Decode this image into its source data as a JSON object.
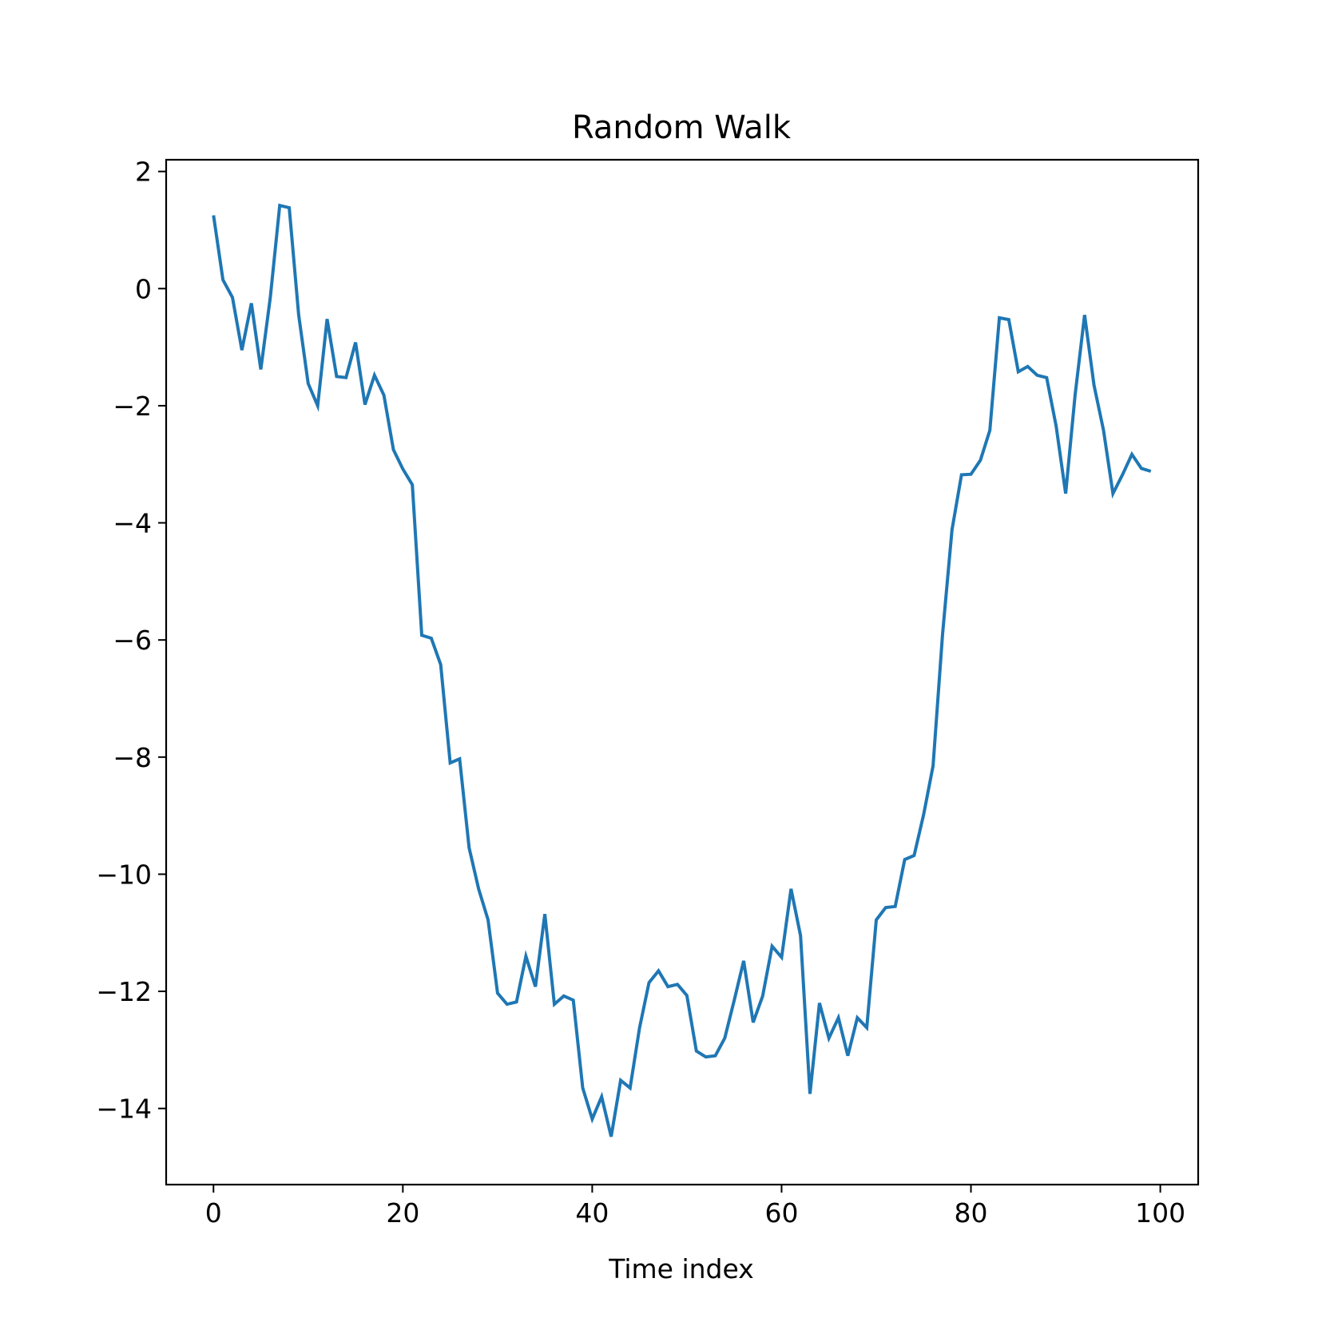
{
  "chart_data": {
    "type": "line",
    "title": "Random Walk",
    "xlabel": "Time index",
    "ylabel": "",
    "xlim": [
      -5,
      104
    ],
    "ylim": [
      -15.3,
      2.2
    ],
    "xticks": [
      0,
      20,
      40,
      60,
      80,
      100
    ],
    "yticks": [
      2,
      0,
      -2,
      -4,
      -6,
      -8,
      -10,
      -12,
      -14
    ],
    "xtick_labels": [
      "0",
      "20",
      "40",
      "60",
      "80",
      "100"
    ],
    "ytick_labels": [
      "2",
      "0",
      "−2",
      "−4",
      "−6",
      "−8",
      "−10",
      "−12",
      "−14"
    ],
    "grid": false,
    "series": [
      {
        "color": "#1f77b4",
        "x": [
          0,
          1,
          2,
          3,
          4,
          5,
          6,
          7,
          8,
          9,
          10,
          11,
          12,
          13,
          14,
          15,
          16,
          17,
          18,
          19,
          20,
          21,
          22,
          23,
          24,
          25,
          26,
          27,
          28,
          29,
          30,
          31,
          32,
          33,
          34,
          35,
          36,
          37,
          38,
          39,
          40,
          41,
          42,
          43,
          44,
          45,
          46,
          47,
          48,
          49,
          50,
          51,
          52,
          53,
          54,
          55,
          56,
          57,
          58,
          59,
          60,
          61,
          62,
          63,
          64,
          65,
          66,
          67,
          68,
          69,
          70,
          71,
          72,
          73,
          74,
          75,
          76,
          77,
          78,
          79,
          80,
          81,
          82,
          83,
          84,
          85,
          86,
          87,
          88,
          89,
          90,
          91,
          92,
          93,
          94,
          95,
          96,
          97,
          98,
          99
        ],
        "y": [
          1.25,
          0.15,
          -0.15,
          -1.05,
          -0.25,
          -1.38,
          -0.15,
          1.42,
          1.38,
          -0.45,
          -1.62,
          -2.0,
          -0.52,
          -1.5,
          -1.52,
          -0.92,
          -1.98,
          -1.48,
          -1.82,
          -2.75,
          -3.08,
          -3.35,
          -5.92,
          -5.97,
          -6.42,
          -8.1,
          -8.03,
          -9.55,
          -10.25,
          -10.78,
          -12.03,
          -12.22,
          -12.18,
          -11.4,
          -11.92,
          -10.68,
          -12.22,
          -12.08,
          -12.15,
          -13.65,
          -14.18,
          -13.8,
          -14.48,
          -13.52,
          -13.65,
          -12.62,
          -11.85,
          -11.65,
          -11.92,
          -11.88,
          -12.07,
          -13.02,
          -13.12,
          -13.1,
          -12.8,
          -12.15,
          -11.48,
          -12.53,
          -12.08,
          -11.23,
          -11.42,
          -10.25,
          -11.05,
          -13.75,
          -12.2,
          -12.8,
          -12.45,
          -13.1,
          -12.45,
          -12.62,
          -10.78,
          -10.57,
          -10.55,
          -9.75,
          -9.68,
          -8.98,
          -8.15,
          -5.9,
          -4.12,
          -3.18,
          -3.17,
          -2.93,
          -2.42,
          -0.5,
          -0.53,
          -1.42,
          -1.33,
          -1.48,
          -1.52,
          -2.35,
          -3.5,
          -1.82,
          -0.45,
          -1.65,
          -2.42,
          -3.5,
          -3.18,
          -2.83,
          -3.07,
          -3.12
        ]
      }
    ]
  }
}
